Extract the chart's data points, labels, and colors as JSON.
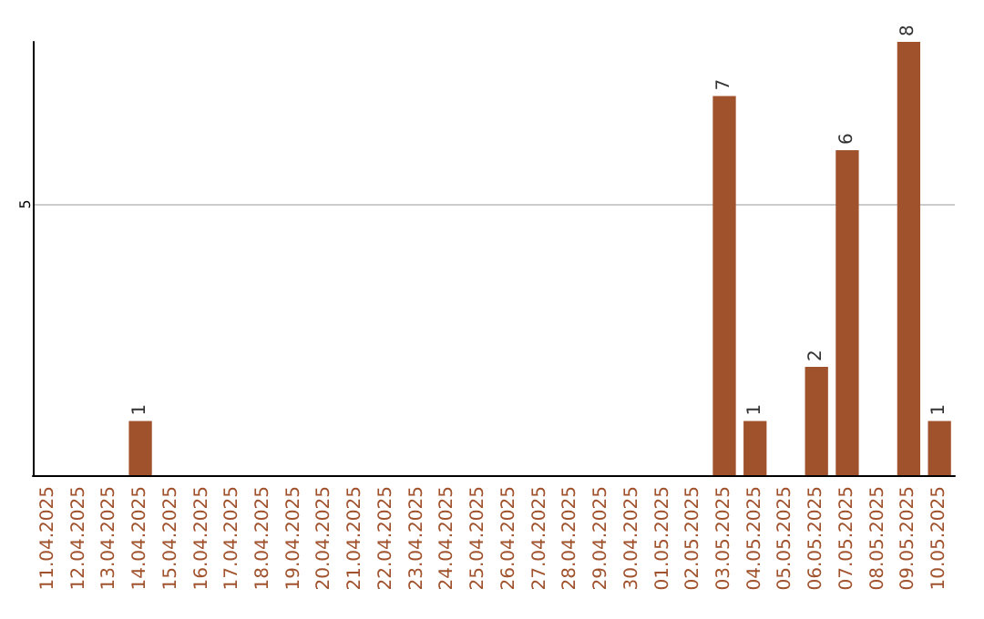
{
  "chart_data": {
    "type": "bar",
    "categories": [
      "11.04.2025",
      "12.04.2025",
      "13.04.2025",
      "14.04.2025",
      "15.04.2025",
      "16.04.2025",
      "17.04.2025",
      "18.04.2025",
      "19.04.2025",
      "20.04.2025",
      "21.04.2025",
      "22.04.2025",
      "23.04.2025",
      "24.04.2025",
      "25.04.2025",
      "26.04.2025",
      "27.04.2025",
      "28.04.2025",
      "29.04.2025",
      "30.04.2025",
      "01.05.2025",
      "02.05.2025",
      "03.05.2025",
      "04.05.2025",
      "05.05.2025",
      "06.05.2025",
      "07.05.2025",
      "08.05.2025",
      "09.05.2025",
      "10.05.2025"
    ],
    "values": [
      0,
      0,
      0,
      1,
      0,
      0,
      0,
      0,
      0,
      0,
      0,
      0,
      0,
      0,
      0,
      0,
      0,
      0,
      0,
      0,
      0,
      0,
      7,
      1,
      0,
      2,
      6,
      0,
      8,
      1
    ],
    "value_labels": [
      null,
      null,
      null,
      "1",
      null,
      null,
      null,
      null,
      null,
      null,
      null,
      null,
      null,
      null,
      null,
      null,
      null,
      null,
      null,
      null,
      null,
      null,
      "7",
      "1",
      null,
      "2",
      "6",
      null,
      "8",
      "1"
    ],
    "color": "#a0522d",
    "ylim": [
      0,
      8
    ],
    "yticks": [
      5
    ],
    "grid": "y"
  }
}
